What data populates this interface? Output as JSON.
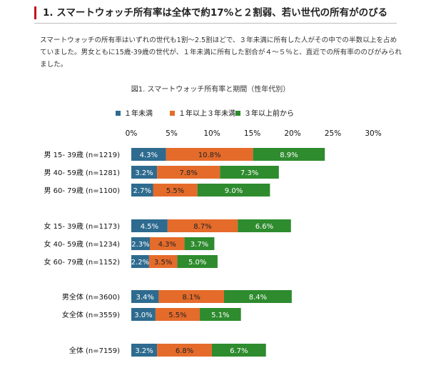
{
  "header": {
    "title": "1. スマートウォッチ所有率は全体で約17%と２割弱、若い世代の所有がのびる"
  },
  "intro": {
    "text": "スマートウォッチの所有率はいずれの世代も1割〜2.5割ほどで、３年未満に所有した人がその中での半数以上を占めていました。男女ともに15歳-39歳の世代が、１年未満に所有した割合が４〜５％と、直近での所有率ののびがみられました。"
  },
  "colors": {
    "accent": "#c0141e",
    "series": [
      "#2e6b8f",
      "#e56b2b",
      "#2e8b2e"
    ],
    "label_dark_text": "#ffffff",
    "label_light_text": "#222222"
  },
  "chart_data": {
    "type": "bar",
    "orientation": "horizontal",
    "stacked": true,
    "title": "図1. スマートウォッチ所有率と期間（性年代別）",
    "xlim": [
      0,
      30
    ],
    "x_ticks": [
      "0%",
      "5%",
      "10%",
      "15%",
      "20%",
      "25%",
      "30%"
    ],
    "x_tick_values": [
      0,
      5,
      10,
      15,
      20,
      25,
      30
    ],
    "legend_position": "top",
    "categories": [
      "男  15- 39歳 (n=1219)",
      "男  40- 59歳 (n=1281)",
      "男  60- 79歳 (n=1100)",
      "女  15- 39歳 (n=1173)",
      "女  40- 59歳 (n=1234)",
      "女  60- 79歳 (n=1152)",
      "男全体 (n=3600)",
      "女全体 (n=3559)",
      "全体 (n=7159)"
    ],
    "series": [
      {
        "name": "１年未満",
        "values": [
          4.3,
          3.2,
          2.7,
          4.5,
          2.3,
          2.2,
          3.4,
          3.0,
          3.2
        ],
        "labels": [
          "4.3%",
          "3.2%",
          "2.7%",
          "4.5%",
          "2.3%",
          "2.2%",
          "3.4%",
          "3.0%",
          "3.2%"
        ]
      },
      {
        "name": "１年以上３年未満",
        "values": [
          10.8,
          7.8,
          5.5,
          8.7,
          4.3,
          3.5,
          8.1,
          5.5,
          6.8
        ],
        "labels": [
          "10.8%",
          "7.8%",
          "5.5%",
          "8.7%",
          "4.3%",
          "3.5%",
          "8.1%",
          "5.5%",
          "6.8%"
        ]
      },
      {
        "name": "３年以上前から",
        "values": [
          8.9,
          7.3,
          9.0,
          6.6,
          3.7,
          5.0,
          8.4,
          5.1,
          6.7
        ],
        "labels": [
          "8.9%",
          "7.3%",
          "9.0%",
          "6.6%",
          "3.7%",
          "5.0%",
          "8.4%",
          "5.1%",
          "6.7%"
        ]
      }
    ]
  }
}
